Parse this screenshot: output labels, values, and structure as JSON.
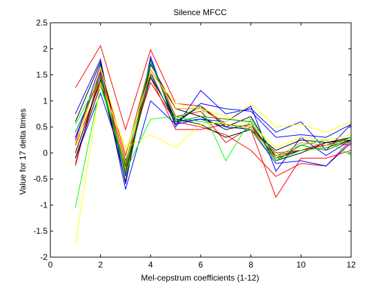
{
  "chart_data": {
    "type": "line",
    "title": "Silence MFCC",
    "xlabel": "Mel-cepstrum coefficients (1-12)",
    "ylabel": "Value for 17 delta times",
    "xlim": [
      0,
      12
    ],
    "ylim": [
      -2,
      2.5
    ],
    "xticks": [
      0,
      2,
      4,
      6,
      8,
      10,
      12
    ],
    "yticks": [
      -2,
      -1.5,
      -1,
      -0.5,
      0,
      0.5,
      1,
      1.5,
      2,
      2.5
    ],
    "grid": false,
    "x": [
      1,
      2,
      3,
      4,
      5,
      6,
      7,
      8,
      9,
      10,
      11,
      12
    ],
    "series": [
      {
        "color": "#ff0000",
        "values": [
          1.25,
          2.06,
          0.45,
          1.98,
          0.95,
          0.9,
          0.55,
          0.45,
          -0.05,
          0.05,
          0.15,
          0.3
        ]
      },
      {
        "color": "#ff0000",
        "values": [
          -0.2,
          1.5,
          -0.15,
          1.35,
          0.6,
          0.5,
          0.35,
          0.05,
          -0.45,
          -0.2,
          -0.25,
          0.25
        ]
      },
      {
        "color": "#ff0000",
        "values": [
          0.15,
          1.35,
          -0.35,
          1.45,
          0.45,
          0.45,
          0.55,
          0.45,
          -0.85,
          -0.1,
          -0.1,
          0.05
        ]
      },
      {
        "color": "#ff0000",
        "values": [
          -0.25,
          1.6,
          -0.05,
          1.75,
          0.7,
          0.8,
          0.2,
          0.5,
          0.0,
          0.05,
          0.2,
          0.15
        ]
      },
      {
        "color": "#0000ff",
        "values": [
          0.75,
          1.8,
          -0.6,
          1.85,
          0.5,
          1.2,
          0.75,
          0.85,
          0.4,
          0.6,
          0.05,
          0.55
        ]
      },
      {
        "color": "#0000ff",
        "values": [
          0.3,
          1.55,
          -0.7,
          1.0,
          0.55,
          0.95,
          0.85,
          0.8,
          0.3,
          0.35,
          0.3,
          0.55
        ]
      },
      {
        "color": "#0000ff",
        "values": [
          -0.1,
          1.15,
          -0.3,
          1.55,
          0.55,
          0.65,
          0.6,
          0.9,
          -0.35,
          0.3,
          -0.05,
          0.25
        ]
      },
      {
        "color": "#0000ff",
        "values": [
          0.25,
          1.7,
          -0.45,
          1.8,
          0.6,
          0.65,
          0.5,
          0.45,
          -0.2,
          -0.15,
          -0.25,
          0.2
        ]
      },
      {
        "color": "#000000",
        "values": [
          0.6,
          1.75,
          -0.4,
          1.75,
          0.6,
          0.9,
          0.5,
          0.7,
          -0.1,
          0.05,
          0.1,
          0.25
        ]
      },
      {
        "color": "#000000",
        "values": [
          0.0,
          1.4,
          -0.55,
          1.7,
          0.85,
          0.7,
          0.45,
          0.55,
          -0.15,
          0.0,
          0.2,
          0.3
        ]
      },
      {
        "color": "#000000",
        "values": [
          -0.1,
          1.3,
          -0.25,
          1.45,
          0.65,
          0.55,
          0.3,
          0.45,
          0.05,
          0.25,
          0.2,
          0.25
        ]
      },
      {
        "color": "#00ff00",
        "values": [
          -1.05,
          1.3,
          -0.2,
          1.75,
          0.65,
          0.9,
          -0.15,
          0.65,
          -0.05,
          0.15,
          0.25,
          -0.05
        ]
      },
      {
        "color": "#00ff00",
        "values": [
          0.55,
          1.45,
          -0.35,
          0.65,
          0.7,
          0.6,
          0.55,
          0.45,
          -0.15,
          0.05,
          0.1,
          0.3
        ]
      },
      {
        "color": "#ffff00",
        "values": [
          -1.75,
          1.35,
          0.1,
          0.35,
          0.1,
          0.55,
          0.6,
          0.95,
          0.5,
          0.55,
          0.4,
          0.6
        ]
      },
      {
        "color": "#ffff00",
        "values": [
          0.05,
          1.65,
          0.0,
          1.55,
          0.95,
          0.85,
          0.7,
          0.55,
          0.1,
          0.3,
          0.25,
          0.35
        ]
      },
      {
        "color": "#ff8800",
        "values": [
          0.2,
          1.6,
          -0.3,
          1.6,
          0.85,
          0.85,
          0.55,
          0.5,
          -0.1,
          0.2,
          0.15,
          0.2
        ]
      },
      {
        "color": "#008800",
        "values": [
          0.4,
          1.45,
          -0.4,
          1.5,
          0.6,
          0.7,
          0.65,
          0.6,
          -0.15,
          0.15,
          0.05,
          0.25
        ]
      }
    ]
  }
}
